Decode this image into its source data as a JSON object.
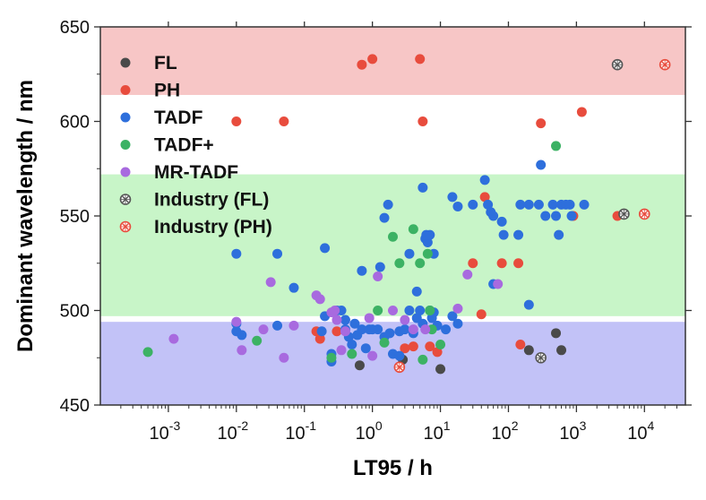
{
  "chart_data": {
    "type": "scatter",
    "xlabel": "LT95 / h",
    "ylabel": "Dominant wavelength / nm",
    "x_scale": "log",
    "xlim": [
      0.0001,
      40000
    ],
    "ylim": [
      450,
      650
    ],
    "y_ticks": [
      450,
      500,
      550,
      600,
      650
    ],
    "x_ticks": [
      {
        "value": 0.001,
        "base": "10",
        "exp": "-3"
      },
      {
        "value": 0.01,
        "base": "10",
        "exp": "-2"
      },
      {
        "value": 0.1,
        "base": "10",
        "exp": "-1"
      },
      {
        "value": 1,
        "base": "10",
        "exp": "0"
      },
      {
        "value": 10,
        "base": "10",
        "exp": "1"
      },
      {
        "value": 100,
        "base": "10",
        "exp": "2"
      },
      {
        "value": 1000,
        "base": "10",
        "exp": "3"
      },
      {
        "value": 10000,
        "base": "10",
        "exp": "4"
      }
    ],
    "grid": false,
    "legend_position": "top-left",
    "bands": [
      {
        "color": "red-band",
        "y": [
          614,
          650
        ],
        "fill": "#f7c6c6"
      },
      {
        "color": "green-band",
        "y": [
          497,
          572
        ],
        "fill": "#c8f5c8"
      },
      {
        "color": "blue-band",
        "y": [
          450,
          494
        ],
        "fill": "#c2c2f7"
      }
    ],
    "series": [
      {
        "name": "FL",
        "marker": "dot",
        "color": "#4a4a4a",
        "points": [
          [
            0.65,
            471
          ],
          [
            2.8,
            474
          ],
          [
            10,
            469
          ],
          [
            200,
            479
          ],
          [
            500,
            488
          ],
          [
            600,
            479
          ]
        ]
      },
      {
        "name": "PH",
        "marker": "dot",
        "color": "#e84c3d",
        "points": [
          [
            0.01,
            600
          ],
          [
            0.05,
            600
          ],
          [
            0.7,
            630
          ],
          [
            1.0,
            633
          ],
          [
            5.0,
            633
          ],
          [
            5.5,
            600
          ],
          [
            300,
            599
          ],
          [
            1200,
            605
          ],
          [
            45,
            560
          ],
          [
            30,
            525
          ],
          [
            80,
            525
          ],
          [
            140,
            525
          ],
          [
            900,
            550
          ],
          [
            4000,
            550
          ],
          [
            0.15,
            489
          ],
          [
            0.17,
            485
          ],
          [
            0.3,
            489
          ],
          [
            3.0,
            480
          ],
          [
            4.0,
            481
          ],
          [
            7.0,
            481
          ],
          [
            9.0,
            478
          ],
          [
            40,
            498
          ],
          [
            150,
            482
          ]
        ]
      },
      {
        "name": "TADF",
        "marker": "dot",
        "color": "#2e6fdc",
        "points": [
          [
            0.01,
            530
          ],
          [
            0.04,
            530
          ],
          [
            0.07,
            512
          ],
          [
            0.2,
            533
          ],
          [
            0.7,
            521
          ],
          [
            1.3,
            523
          ],
          [
            1.5,
            549
          ],
          [
            1.7,
            556
          ],
          [
            3.5,
            530
          ],
          [
            5.5,
            565
          ],
          [
            6.0,
            538
          ],
          [
            6.5,
            536
          ],
          [
            6.2,
            540
          ],
          [
            7.0,
            540
          ],
          [
            8.0,
            530
          ],
          [
            4.5,
            510
          ],
          [
            15,
            560
          ],
          [
            18,
            555
          ],
          [
            30,
            556
          ],
          [
            45,
            569
          ],
          [
            50,
            556
          ],
          [
            55,
            552
          ],
          [
            60,
            550
          ],
          [
            80,
            547
          ],
          [
            85,
            540
          ],
          [
            140,
            540
          ],
          [
            150,
            556
          ],
          [
            200,
            556
          ],
          [
            280,
            556
          ],
          [
            300,
            577
          ],
          [
            350,
            550
          ],
          [
            450,
            556
          ],
          [
            500,
            550
          ],
          [
            550,
            540
          ],
          [
            600,
            556
          ],
          [
            700,
            556
          ],
          [
            800,
            556
          ],
          [
            850,
            550
          ],
          [
            1300,
            556
          ],
          [
            5000,
            551
          ],
          [
            60,
            514
          ],
          [
            200,
            503
          ],
          [
            0.01,
            493
          ],
          [
            0.01,
            489
          ],
          [
            0.012,
            487
          ],
          [
            0.04,
            492
          ],
          [
            0.2,
            497
          ],
          [
            0.25,
            477
          ],
          [
            0.3,
            500
          ],
          [
            0.35,
            500
          ],
          [
            0.4,
            495
          ],
          [
            0.4,
            490
          ],
          [
            0.45,
            486
          ],
          [
            0.5,
            482
          ],
          [
            0.55,
            493
          ],
          [
            0.6,
            487
          ],
          [
            0.7,
            490
          ],
          [
            0.8,
            480
          ],
          [
            0.9,
            490
          ],
          [
            1.0,
            490
          ],
          [
            1.2,
            490
          ],
          [
            1.5,
            486
          ],
          [
            1.8,
            488
          ],
          [
            2.0,
            477
          ],
          [
            2.5,
            489
          ],
          [
            3.0,
            490
          ],
          [
            3.5,
            500
          ],
          [
            4.0,
            488
          ],
          [
            4.5,
            496
          ],
          [
            5.0,
            500
          ],
          [
            5.5,
            493
          ],
          [
            7.0,
            500
          ],
          [
            7.5,
            496
          ],
          [
            8.0,
            499
          ],
          [
            9.0,
            492
          ],
          [
            12,
            490
          ],
          [
            15,
            497
          ],
          [
            18,
            493
          ],
          [
            0.25,
            473
          ],
          [
            2.5,
            476
          ],
          [
            0.18,
            489
          ]
        ]
      },
      {
        "name": "TADF+",
        "marker": "dot",
        "color": "#3cb264",
        "points": [
          [
            0.0005,
            478
          ],
          [
            0.02,
            484
          ],
          [
            0.25,
            475
          ],
          [
            0.5,
            477
          ],
          [
            1.5,
            483
          ],
          [
            2.0,
            539
          ],
          [
            2.5,
            525
          ],
          [
            4.0,
            543
          ],
          [
            5.0,
            525
          ],
          [
            5.5,
            474
          ],
          [
            6.5,
            530
          ],
          [
            7.0,
            500
          ],
          [
            7.5,
            490
          ],
          [
            10,
            482
          ],
          [
            500,
            587
          ],
          [
            1.2,
            500
          ]
        ]
      },
      {
        "name": "MR-TADF",
        "marker": "dot",
        "color": "#a86adf",
        "points": [
          [
            0.0012,
            485
          ],
          [
            0.01,
            494
          ],
          [
            0.012,
            479
          ],
          [
            0.025,
            490
          ],
          [
            0.032,
            515
          ],
          [
            0.05,
            475
          ],
          [
            0.07,
            492
          ],
          [
            0.15,
            508
          ],
          [
            0.17,
            506
          ],
          [
            0.25,
            499
          ],
          [
            0.28,
            500
          ],
          [
            0.3,
            495
          ],
          [
            0.35,
            479
          ],
          [
            0.4,
            489
          ],
          [
            0.9,
            496
          ],
          [
            1.0,
            476
          ],
          [
            1.2,
            518
          ],
          [
            2.0,
            500
          ],
          [
            3.0,
            495
          ],
          [
            4.0,
            490
          ],
          [
            6.0,
            490
          ],
          [
            18,
            501
          ],
          [
            25,
            519
          ],
          [
            70,
            514
          ]
        ]
      },
      {
        "name": "Industry (FL)",
        "marker": "x-circle",
        "color": "#555555",
        "points": [
          [
            4000,
            630
          ],
          [
            5000,
            551
          ],
          [
            300,
            475
          ]
        ]
      },
      {
        "name": "Industry (PH)",
        "marker": "x-circle",
        "color": "#e84c3d",
        "points": [
          [
            20000,
            630
          ],
          [
            10000,
            551
          ],
          [
            2.5,
            470
          ]
        ]
      }
    ]
  }
}
